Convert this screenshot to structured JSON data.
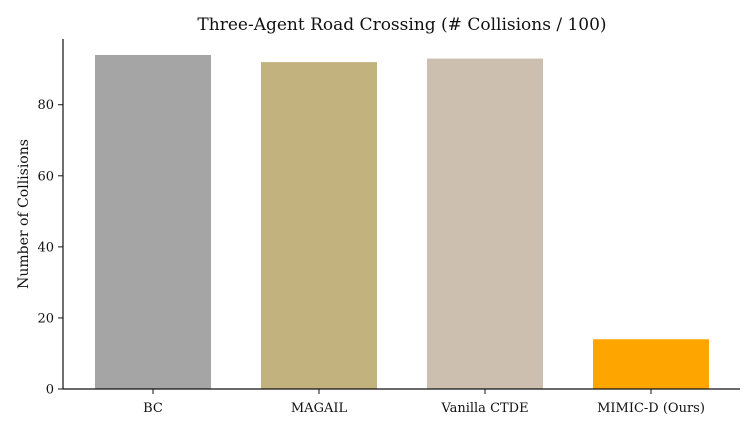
{
  "chart_data": {
    "type": "bar",
    "title": "Three-Agent Road Crossing (# Collisions / 100)",
    "xlabel": "",
    "ylabel": "Number of Collisions",
    "categories": [
      "BC",
      "MAGAIL",
      "Vanilla CTDE",
      "MIMIC-D (Ours)"
    ],
    "values": [
      94,
      92,
      93,
      14
    ],
    "colors": [
      "#a5a5a5",
      "#c2b27e",
      "#cdbfaf",
      "#ffa500"
    ],
    "ylim": [
      0,
      98.5
    ],
    "yticks": [
      0,
      20,
      40,
      60,
      80
    ],
    "ytick_labels": [
      "0",
      "20",
      "40",
      "60",
      "80"
    ],
    "grid": false,
    "legend": "none"
  }
}
